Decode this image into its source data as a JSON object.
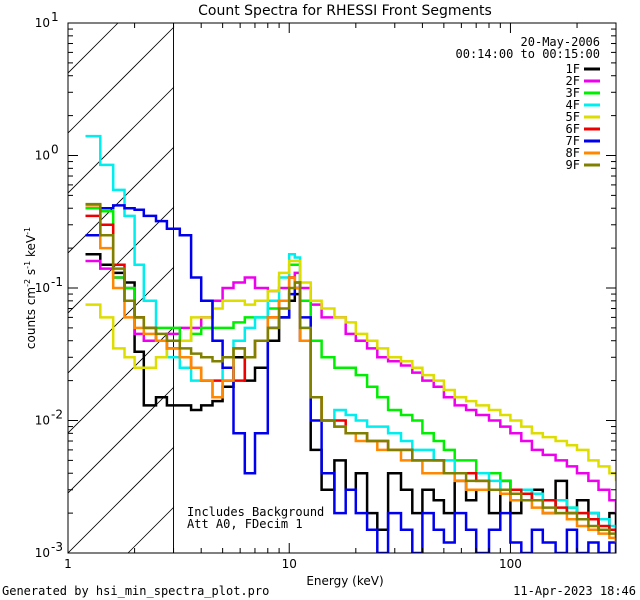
{
  "chart_data": {
    "type": "line",
    "title": "Count Spectra for RHESSI Front Segments",
    "xlabel": "Energy (keV)",
    "ylabel": "counts cm",
    "ylabel_sup1": "-2",
    "ylabel_mid": " s",
    "ylabel_sup2": "-1",
    "ylabel_end": " keV",
    "ylabel_sup3": "-1",
    "xscale": "log",
    "yscale": "log",
    "xlim": [
      1,
      300
    ],
    "ylim": [
      0.001,
      10
    ],
    "x_ticks": [
      {
        "value": 1,
        "label": "1"
      },
      {
        "value": 10,
        "label": "10"
      },
      {
        "value": 100,
        "label": "100"
      }
    ],
    "y_ticks": [
      {
        "value": 0.001,
        "base": "10",
        "exp": "-3"
      },
      {
        "value": 0.01,
        "base": "10",
        "exp": "-2"
      },
      {
        "value": 0.1,
        "base": "10",
        "exp": "-1"
      },
      {
        "value": 1,
        "base": "10",
        "exp": "0"
      },
      {
        "value": 10,
        "base": "10",
        "exp": "1"
      }
    ],
    "date": "20-May-2006",
    "time_range": "00:14:00 to 00:15:00",
    "annotations": [
      "Includes Background",
      "Att A0, FDecim 1"
    ],
    "excluded_region_keV": [
      1,
      3
    ],
    "footer_left": "Generated by hsi_min_spectra_plot.pro",
    "footer_right": "11-Apr-2023 18:46",
    "energy_bins": [
      1.2,
      1.4,
      1.6,
      1.8,
      2.0,
      2.2,
      2.5,
      2.8,
      3.2,
      3.6,
      4.0,
      4.5,
      5.0,
      5.6,
      6.3,
      7.0,
      8.0,
      9.0,
      10.0,
      10.6,
      11.2,
      12.5,
      14,
      16,
      18,
      20,
      22.5,
      25,
      28,
      32,
      36,
      40,
      45,
      50,
      56,
      63,
      70,
      80,
      90,
      100,
      112,
      125,
      140,
      160,
      180,
      200,
      225,
      250,
      280,
      300
    ],
    "series": [
      {
        "name": "1F",
        "color": "#000000",
        "values": [
          0.18,
          0.15,
          0.13,
          0.11,
          0.033,
          0.013,
          0.015,
          0.013,
          0.013,
          0.012,
          0.013,
          0.014,
          0.018,
          0.03,
          0.02,
          0.025,
          0.04,
          0.06,
          0.08,
          0.09,
          0.04,
          0.006,
          0.003,
          0.005,
          0.003,
          0.004,
          0.002,
          0.0015,
          0.004,
          0.003,
          0.002,
          0.003,
          0.0025,
          0.002,
          0.0035,
          0.0025,
          0.003,
          0.002,
          0.0035,
          0.002,
          0.0025,
          0.003,
          0.002,
          0.0035,
          0.002,
          0.0025,
          0.002,
          0.0015,
          0.002,
          0.0015
        ]
      },
      {
        "name": "2F",
        "color": "#ee00ee",
        "values": [
          0.16,
          0.14,
          0.12,
          0.1,
          0.045,
          0.04,
          0.04,
          0.045,
          0.05,
          0.05,
          0.06,
          0.08,
          0.1,
          0.11,
          0.12,
          0.1,
          0.095,
          0.1,
          0.12,
          0.13,
          0.1,
          0.075,
          0.06,
          0.06,
          0.045,
          0.04,
          0.035,
          0.03,
          0.028,
          0.026,
          0.023,
          0.02,
          0.018,
          0.015,
          0.013,
          0.012,
          0.011,
          0.01,
          0.009,
          0.008,
          0.007,
          0.006,
          0.0055,
          0.005,
          0.0045,
          0.004,
          0.0035,
          0.003,
          0.0025,
          0.002
        ]
      },
      {
        "name": "3F",
        "color": "#00ee00",
        "values": [
          0.4,
          0.38,
          0.12,
          0.1,
          0.06,
          0.05,
          0.05,
          0.05,
          0.04,
          0.045,
          0.05,
          0.05,
          0.05,
          0.055,
          0.06,
          0.06,
          0.07,
          0.08,
          0.15,
          0.15,
          0.08,
          0.04,
          0.03,
          0.025,
          0.025,
          0.022,
          0.018,
          0.015,
          0.012,
          0.011,
          0.01,
          0.008,
          0.007,
          0.006,
          0.005,
          0.005,
          0.004,
          0.004,
          0.0035,
          0.003,
          0.003,
          0.0028,
          0.0025,
          0.0025,
          0.0022,
          0.002,
          0.0018,
          0.0015,
          0.0015,
          0.0012
        ]
      },
      {
        "name": "4F",
        "color": "#00eeee",
        "values": [
          1.4,
          0.85,
          0.55,
          0.35,
          0.15,
          0.08,
          0.04,
          0.03,
          0.025,
          0.02,
          0.02,
          0.015,
          0.025,
          0.04,
          0.05,
          0.06,
          0.08,
          0.12,
          0.18,
          0.17,
          0.05,
          0.015,
          0.01,
          0.012,
          0.011,
          0.01,
          0.009,
          0.009,
          0.008,
          0.007,
          0.006,
          0.006,
          0.005,
          0.005,
          0.004,
          0.004,
          0.004,
          0.0035,
          0.003,
          0.003,
          0.003,
          0.0028,
          0.0025,
          0.0025,
          0.0022,
          0.002,
          0.002,
          0.0018,
          0.0016,
          0.0015
        ]
      },
      {
        "name": "5F",
        "color": "#dddd00",
        "values": [
          0.075,
          0.06,
          0.035,
          0.03,
          0.025,
          0.025,
          0.03,
          0.035,
          0.04,
          0.06,
          0.06,
          0.07,
          0.08,
          0.08,
          0.075,
          0.08,
          0.095,
          0.13,
          0.16,
          0.16,
          0.11,
          0.08,
          0.07,
          0.06,
          0.055,
          0.045,
          0.04,
          0.035,
          0.03,
          0.028,
          0.025,
          0.022,
          0.02,
          0.017,
          0.015,
          0.014,
          0.013,
          0.012,
          0.011,
          0.01,
          0.009,
          0.008,
          0.0075,
          0.007,
          0.0065,
          0.006,
          0.005,
          0.0045,
          0.004,
          0.0035
        ]
      },
      {
        "name": "6F",
        "color": "#ee0000",
        "values": [
          0.35,
          0.3,
          0.15,
          0.08,
          0.06,
          0.05,
          0.04,
          0.035,
          0.03,
          0.025,
          0.02,
          0.02,
          0.02,
          0.02,
          0.03,
          0.04,
          0.06,
          0.08,
          0.12,
          0.11,
          0.04,
          0.015,
          0.01,
          0.01,
          0.008,
          0.008,
          0.007,
          0.007,
          0.006,
          0.006,
          0.005,
          0.005,
          0.005,
          0.004,
          0.004,
          0.004,
          0.0035,
          0.003,
          0.003,
          0.003,
          0.0028,
          0.0025,
          0.0025,
          0.0022,
          0.002,
          0.002,
          0.0018,
          0.0016,
          0.0015,
          0.0012
        ]
      },
      {
        "name": "7F",
        "color": "#0000ee",
        "values": [
          0.25,
          0.4,
          0.42,
          0.4,
          0.39,
          0.35,
          0.32,
          0.28,
          0.25,
          0.12,
          0.08,
          0.04,
          0.025,
          0.008,
          0.004,
          0.008,
          0.05,
          0.06,
          0.09,
          0.1,
          0.06,
          0.01,
          0.004,
          0.002,
          0.003,
          0.002,
          0.0015,
          0.001,
          0.002,
          0.0015,
          0.001,
          0.002,
          0.0015,
          0.0012,
          0.002,
          0.0015,
          0.001,
          0.0015,
          0.002,
          0.0012,
          0.001,
          0.0015,
          0.0012,
          0.001,
          0.0015,
          0.001,
          0.0012,
          0.001,
          0.0012,
          0.001
        ]
      },
      {
        "name": "8F",
        "color": "#ff8800",
        "values": [
          0.42,
          0.2,
          0.1,
          0.06,
          0.05,
          0.045,
          0.04,
          0.035,
          0.03,
          0.025,
          0.02,
          0.015,
          0.02,
          0.035,
          0.03,
          0.04,
          0.06,
          0.08,
          0.12,
          0.1,
          0.04,
          0.015,
          0.01,
          0.009,
          0.008,
          0.007,
          0.007,
          0.006,
          0.006,
          0.005,
          0.005,
          0.004,
          0.004,
          0.004,
          0.0035,
          0.003,
          0.003,
          0.003,
          0.0028,
          0.0025,
          0.0025,
          0.0022,
          0.002,
          0.002,
          0.0018,
          0.0016,
          0.0015,
          0.0014,
          0.0013,
          0.0012
        ]
      },
      {
        "name": "9F",
        "color": "#808000",
        "values": [
          0.43,
          0.25,
          0.14,
          0.08,
          0.06,
          0.05,
          0.045,
          0.04,
          0.035,
          0.032,
          0.03,
          0.028,
          0.03,
          0.035,
          0.03,
          0.04,
          0.05,
          0.07,
          0.1,
          0.11,
          0.05,
          0.015,
          0.01,
          0.009,
          0.008,
          0.008,
          0.007,
          0.007,
          0.006,
          0.006,
          0.005,
          0.005,
          0.005,
          0.004,
          0.004,
          0.0035,
          0.0035,
          0.003,
          0.003,
          0.0028,
          0.0025,
          0.0025,
          0.0022,
          0.002,
          0.002,
          0.0018,
          0.0016,
          0.0015,
          0.0014,
          0.0013
        ]
      }
    ]
  }
}
